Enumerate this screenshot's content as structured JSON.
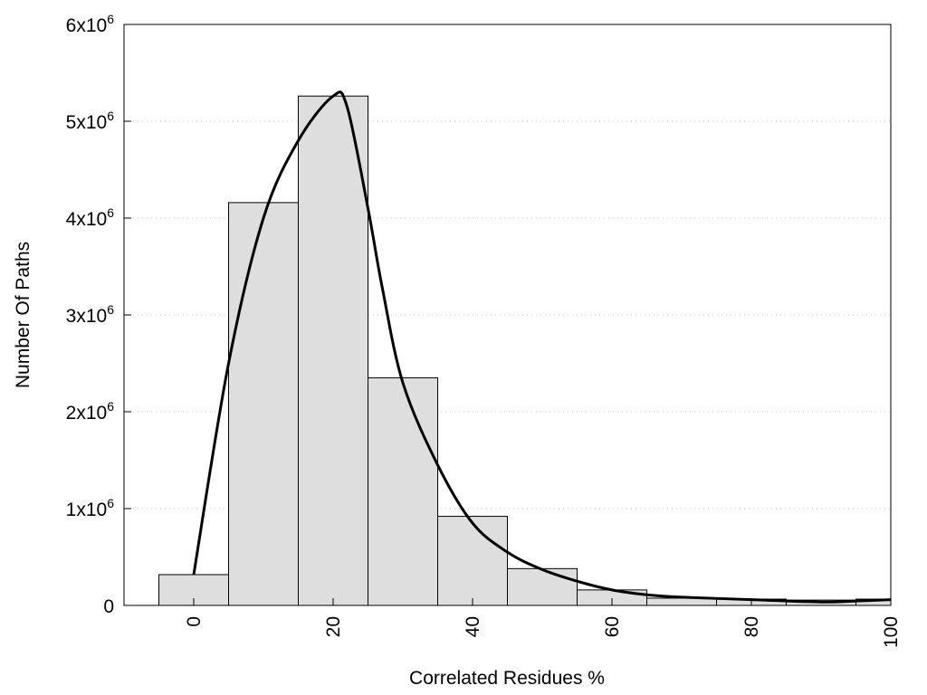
{
  "chart_data": {
    "type": "bar",
    "title": "",
    "xlabel": "Correlated Residues %",
    "ylabel": "Number Of Paths",
    "xlim": [
      -10,
      100
    ],
    "ylim": [
      0,
      6000000
    ],
    "grid": "horizontal dotted",
    "bar_color": "#dedede",
    "x_ticks": [
      0,
      20,
      40,
      60,
      80,
      100
    ],
    "x_tick_labels": [
      "0",
      "20",
      "40",
      "60",
      "80",
      "100"
    ],
    "y_ticks": [
      0,
      1000000,
      2000000,
      3000000,
      4000000,
      5000000,
      6000000
    ],
    "y_tick_labels": [
      {
        "base": "0",
        "exp": ""
      },
      {
        "base": "1x10",
        "exp": "6"
      },
      {
        "base": "2x10",
        "exp": "6"
      },
      {
        "base": "3x10",
        "exp": "6"
      },
      {
        "base": "4x10",
        "exp": "6"
      },
      {
        "base": "5x10",
        "exp": "6"
      },
      {
        "base": "6x10",
        "exp": "6"
      }
    ],
    "bin_width": 10,
    "bars": {
      "x": [
        0,
        10,
        20,
        30,
        40,
        50,
        60,
        70,
        80,
        90,
        100
      ],
      "values": [
        318000,
        4160000,
        5260000,
        2350000,
        920000,
        380000,
        160000,
        75000,
        65000,
        55000,
        65000
      ]
    },
    "curve": {
      "x": [
        0,
        5,
        10,
        15,
        20,
        22,
        25,
        27,
        30,
        35,
        40,
        45,
        50,
        55,
        60,
        65,
        70,
        80,
        90,
        95,
        100
      ],
      "y": [
        320000,
        2500000,
        4000000,
        4800000,
        5260000,
        5150000,
        4100000,
        3300000,
        2300000,
        1450000,
        850000,
        550000,
        370000,
        250000,
        160000,
        110000,
        85000,
        60000,
        35000,
        45000,
        60000
      ]
    }
  }
}
